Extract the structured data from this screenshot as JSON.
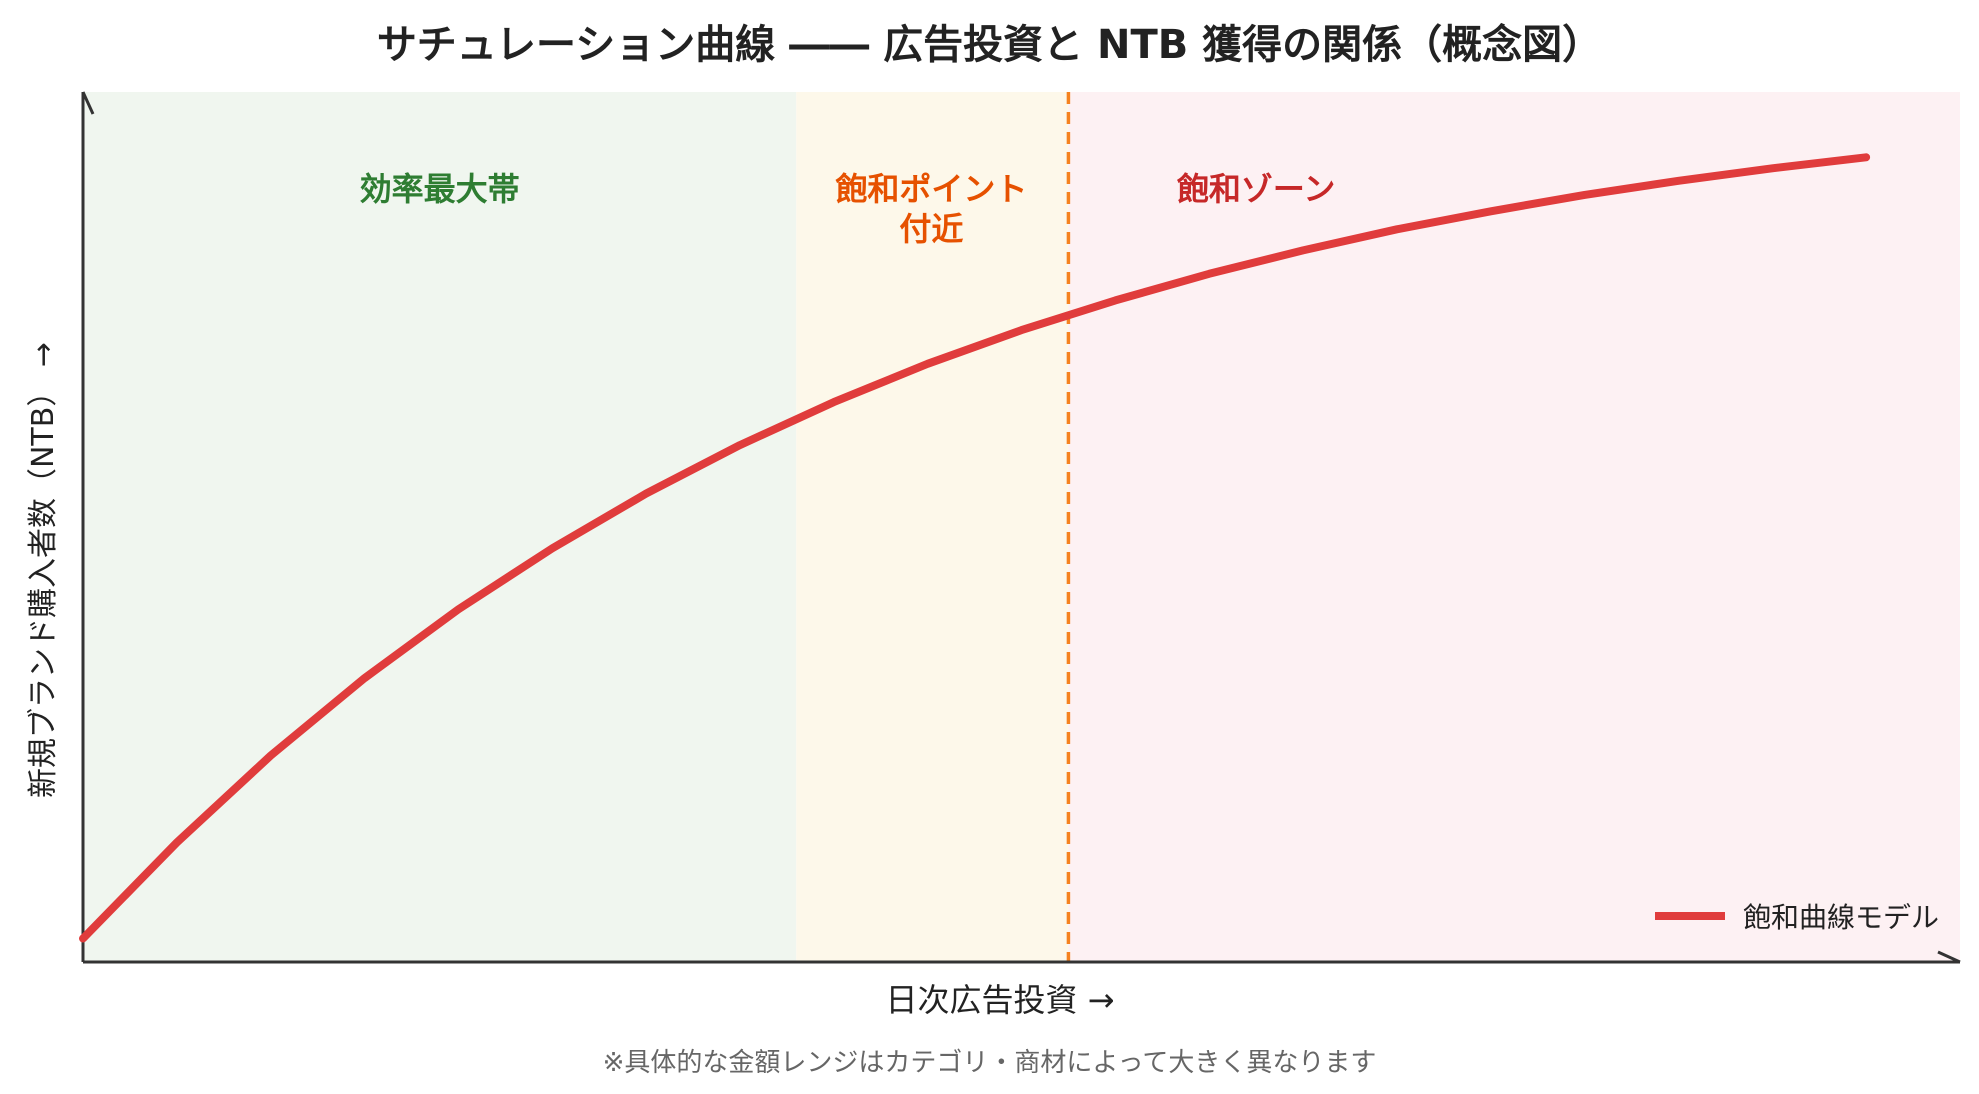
{
  "title": "サチュレーション曲線 ―― 広告投資と NTB 獲得の関係（概念図）",
  "footnote": "※具体的な金額レンジはカテゴリ・商材によって大きく異なります",
  "colors": {
    "curve": "#e03c3c",
    "divider": "#f5821f",
    "zone_efficient_bg": "#f0f6ef",
    "zone_point_bg": "#fdf8ea",
    "zone_saturated_bg": "#fdf1f3",
    "zone_efficient_text": "#2e7d32",
    "zone_point_text": "#e65100",
    "zone_saturated_text": "#c62828",
    "axis": "#333333"
  },
  "chart_data": {
    "type": "line",
    "title": "サチュレーション曲線 ―― 広告投資と NTB 獲得の関係（概念図）",
    "xlabel": "日次広告投資 →",
    "ylabel": "新規ブランド購入者数（NTB） →",
    "xlim": [
      0,
      100
    ],
    "ylim": [
      0,
      100
    ],
    "grid": false,
    "legend_position": "bottom-right",
    "series": [
      {
        "name": "飽和曲線モデル",
        "x": [
          0,
          5,
          10,
          15,
          20,
          25,
          30,
          35,
          40,
          45,
          50,
          55,
          60,
          65,
          70,
          75,
          80,
          85,
          90,
          95
        ],
        "y": [
          3,
          15.3,
          26.4,
          36.3,
          45.1,
          52.9,
          59.9,
          66.1,
          71.6,
          76.5,
          80.8,
          84.6,
          88.0,
          91.0,
          93.7,
          96.0,
          98.1,
          99.9,
          101.5,
          102.9
        ]
      }
    ],
    "regions": [
      {
        "label": "効率最大帯",
        "x_start": 0,
        "x_end": 38
      },
      {
        "label": "飽和ポイント\n付近",
        "x_start": 38,
        "x_end": 52.5
      },
      {
        "label": "飽和ゾーン",
        "x_start": 52.5,
        "x_end": 100
      }
    ],
    "vline_x": 52.5
  }
}
